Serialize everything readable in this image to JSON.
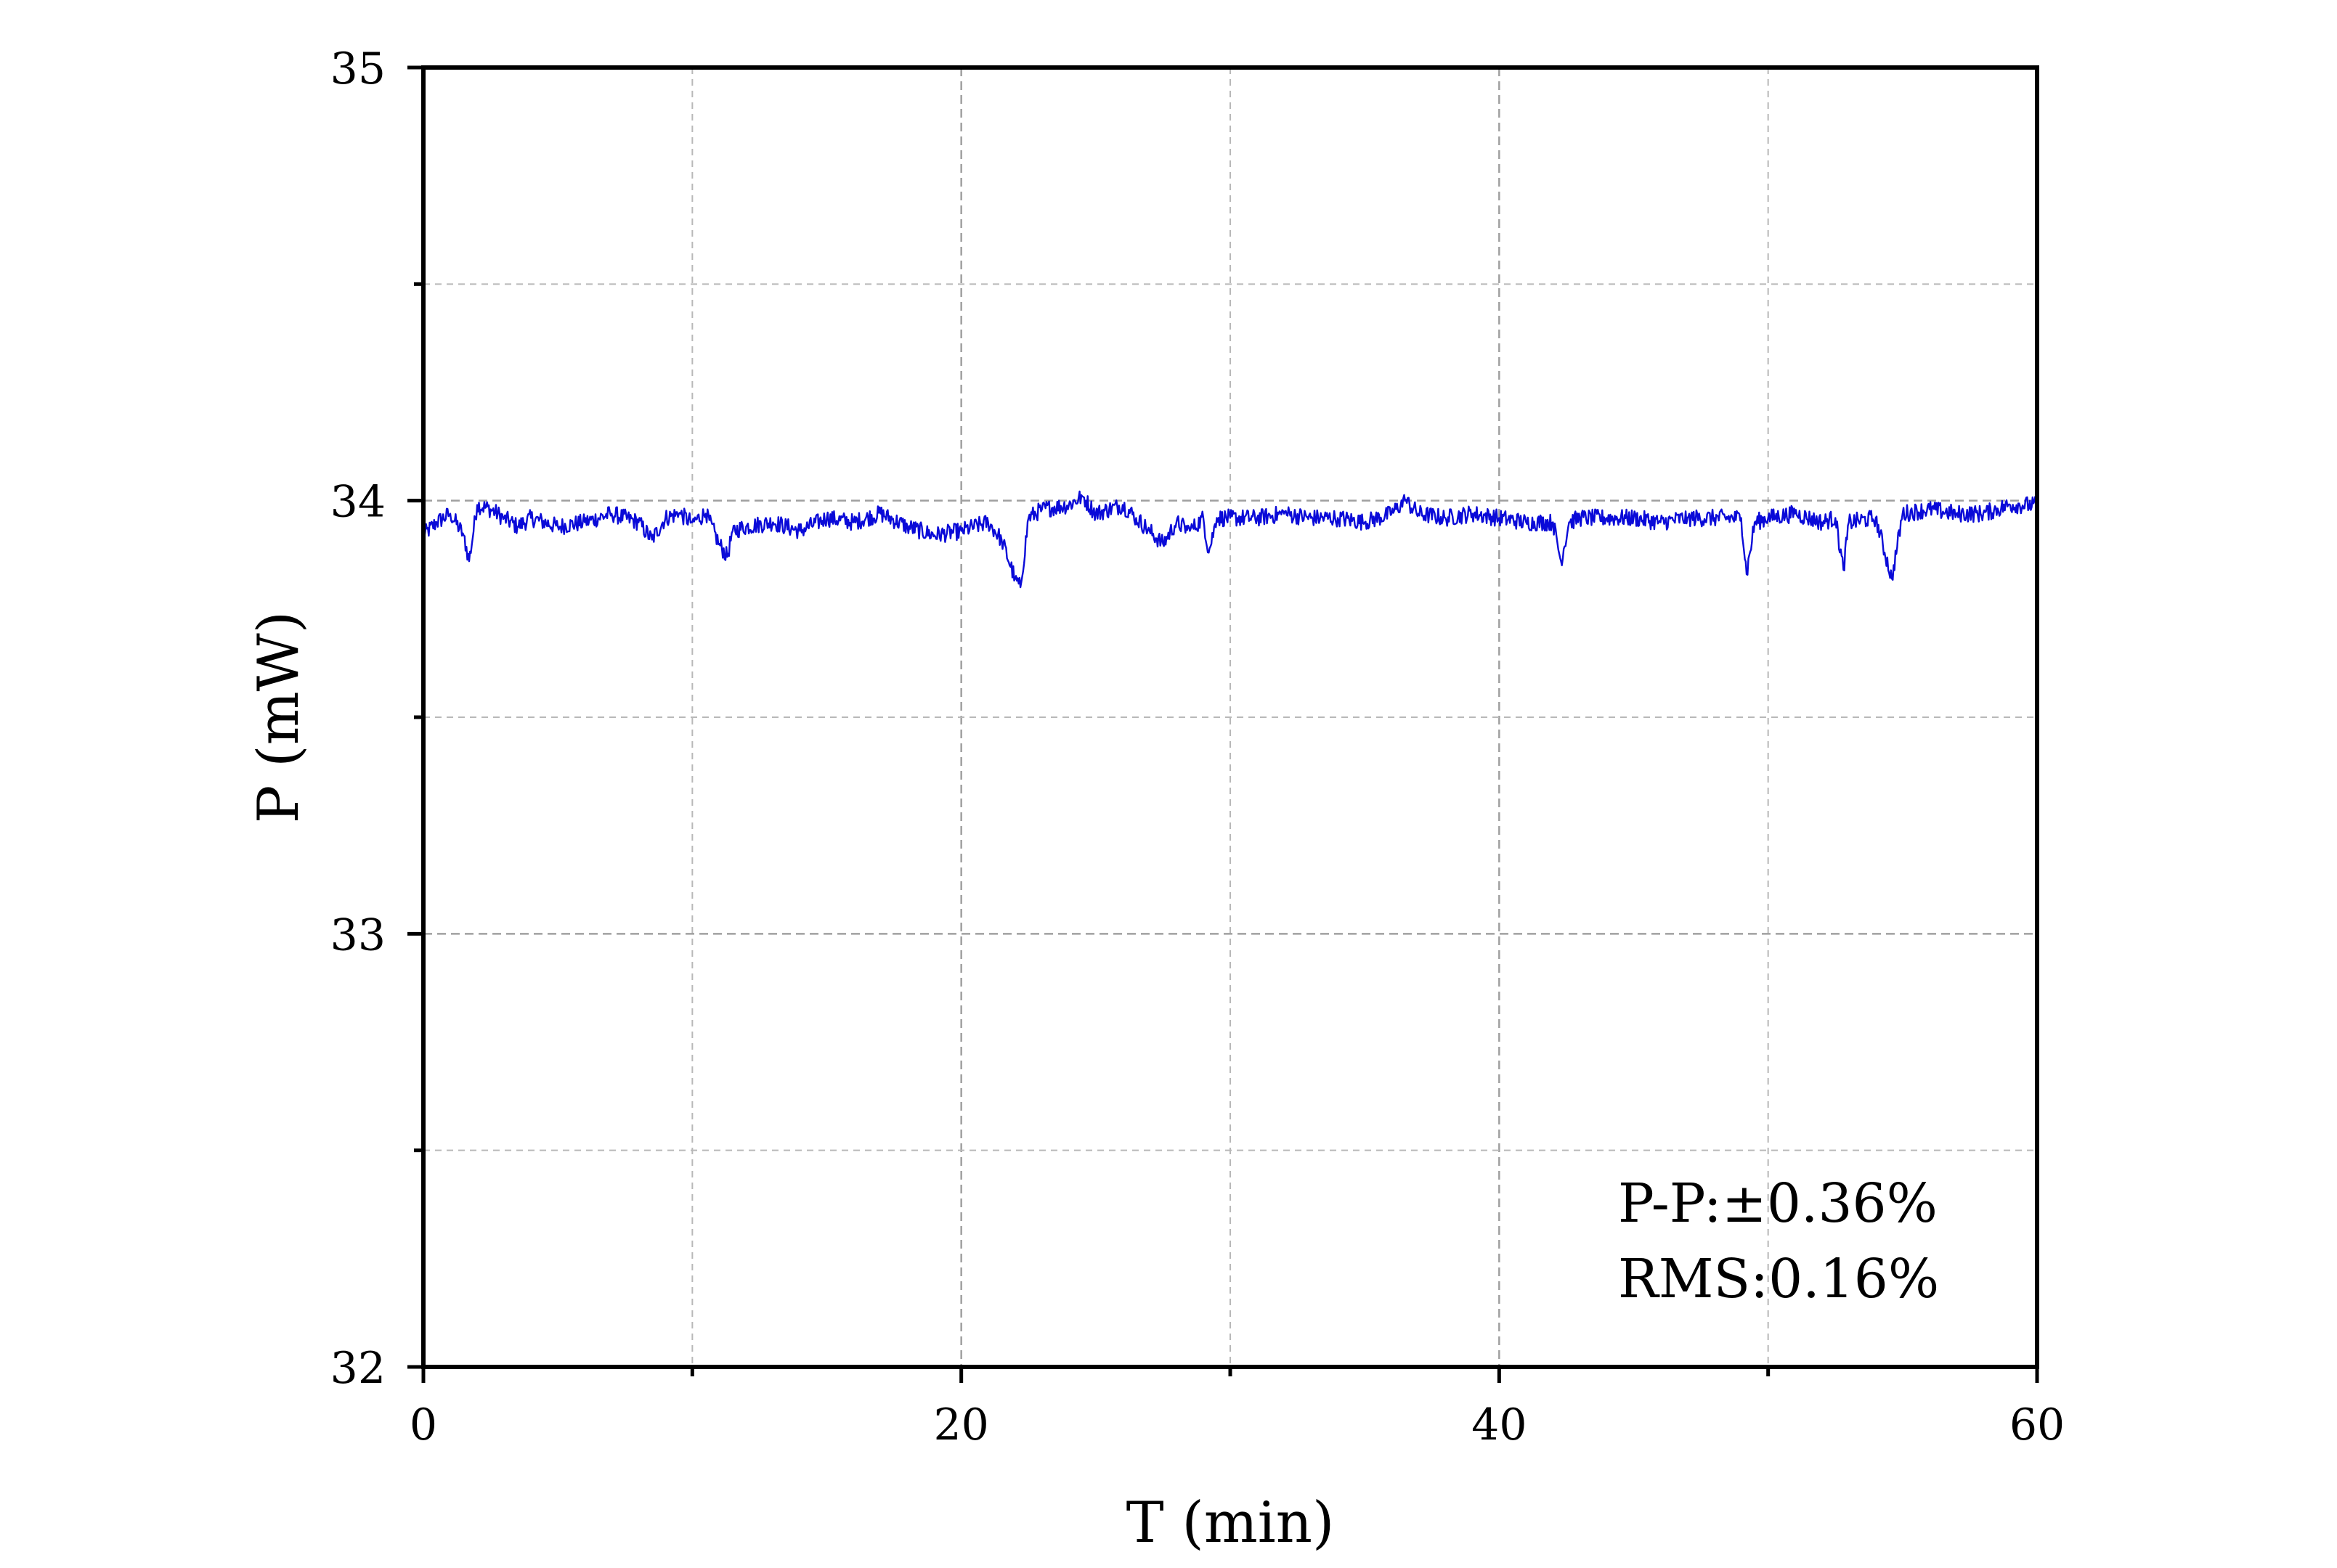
{
  "chart_data": {
    "type": "line",
    "title": "",
    "xlabel": "T (min)",
    "ylabel": "P (mW)",
    "xlim": [
      0,
      60
    ],
    "ylim": [
      32,
      35
    ],
    "x_ticks": [
      0,
      20,
      40,
      60
    ],
    "x_minor_ticks": [
      10,
      30,
      50
    ],
    "y_ticks": [
      32,
      33,
      34,
      35
    ],
    "y_minor_ticks": [
      32.5,
      33.5,
      34.5
    ],
    "grid": true,
    "legend": "none",
    "series": [
      {
        "color": "#0a0ad8",
        "x": [
          0,
          0.5,
          1,
          1.5,
          1.7,
          2,
          2.5,
          3,
          3.5,
          4,
          5,
          6,
          7,
          8,
          8.5,
          9,
          9.5,
          10,
          10.5,
          11,
          11.3,
          11.5,
          12,
          13,
          14,
          15,
          16,
          17,
          18,
          19,
          20,
          21,
          21.5,
          22,
          22.2,
          22.5,
          23,
          24,
          24.5,
          25,
          25.5,
          26,
          26.5,
          27,
          27.5,
          28,
          28.5,
          29,
          29.2,
          29.5,
          30,
          31,
          32,
          33,
          34,
          35,
          36,
          36.5,
          37,
          38,
          39,
          40,
          41,
          42,
          42.3,
          42.6,
          43,
          44,
          45,
          46,
          47,
          48,
          49,
          49.2,
          49.5,
          50,
          51,
          52,
          52.5,
          52.8,
          53,
          54,
          54.6,
          55,
          56,
          57,
          58,
          59,
          60
        ],
        "values": [
          33.92,
          33.95,
          33.97,
          33.92,
          33.86,
          33.99,
          33.98,
          33.96,
          33.94,
          33.96,
          33.94,
          33.95,
          33.97,
          33.95,
          33.91,
          33.96,
          33.97,
          33.95,
          33.97,
          33.9,
          33.87,
          33.93,
          33.94,
          33.95,
          33.93,
          33.96,
          33.95,
          33.97,
          33.94,
          33.92,
          33.93,
          33.95,
          33.91,
          33.82,
          33.8,
          33.96,
          33.98,
          33.99,
          34.01,
          33.97,
          33.98,
          33.99,
          33.96,
          33.93,
          33.9,
          33.95,
          33.93,
          33.96,
          33.88,
          33.96,
          33.96,
          33.96,
          33.97,
          33.96,
          33.96,
          33.95,
          33.97,
          34.0,
          33.97,
          33.96,
          33.97,
          33.96,
          33.95,
          33.95,
          33.86,
          33.95,
          33.96,
          33.96,
          33.96,
          33.95,
          33.96,
          33.96,
          33.96,
          33.83,
          33.95,
          33.96,
          33.97,
          33.95,
          33.96,
          33.84,
          33.95,
          33.96,
          33.82,
          33.97,
          33.98,
          33.97,
          33.97,
          33.99,
          33.99
        ]
      }
    ],
    "annotations": [
      "P-P:±0.36%",
      "RMS:0.16%"
    ]
  }
}
